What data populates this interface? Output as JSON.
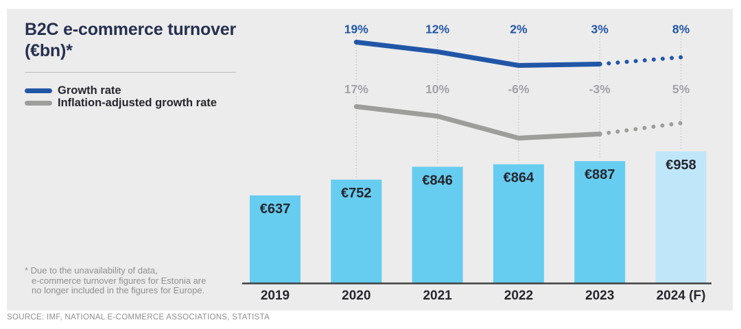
{
  "header": {
    "title_line1": "B2C e-commerce turnover",
    "title_line2": "(€bn)*"
  },
  "footnote": {
    "lines": [
      "* Due to the unavailability of data,",
      "e-commerce turnover figures for Estonia are",
      "no longer included in the figures for Europe."
    ]
  },
  "source": "SOURCE: IMF, NATIONAL E-COMMERCE ASSOCIATIONS, STATISTA",
  "colors": {
    "accent_blue": "#2156a7",
    "line_gray": "#9d9d9c",
    "bar_blue": "#66cdf0",
    "bar_forecast_blue": "#bfe7f9",
    "card_background": "#ececec",
    "dark_text": "#26262e"
  },
  "chart_data": {
    "type": "bar",
    "title": "B2C e-commerce turnover (€bn)*",
    "categories": [
      "2019",
      "2020",
      "2021",
      "2022",
      "2023",
      "2024 (F)"
    ],
    "bars": {
      "name": "B2C e-commerce turnover (€bn)",
      "values": [
        637,
        752,
        846,
        864,
        887,
        958
      ],
      "labels": [
        "€637",
        "€752",
        "€846",
        "€864",
        "€887",
        "€958"
      ],
      "color": "#66cdf0",
      "forecast_color": "#bfe7f9",
      "forecast_index": 5
    },
    "series": [
      {
        "name": "Growth rate",
        "values": [
          null,
          19,
          12,
          2,
          3,
          8
        ],
        "labels": [
          "",
          "19%",
          "12%",
          "2%",
          "3%",
          "8%"
        ],
        "color": "#2156a7",
        "label_color": "#2156a7",
        "dotted_forecast_from_index": 4
      },
      {
        "name": "Inflation-adjusted growth rate",
        "values": [
          null,
          17,
          10,
          -6,
          -3,
          5
        ],
        "labels": [
          "",
          "17%",
          "10%",
          "-6%",
          "-3%",
          "5%"
        ],
        "color": "#9d9d9c",
        "label_color": "#a2a2a6",
        "dotted_forecast_from_index": 4
      }
    ],
    "legend_position": "top-left",
    "grid": "dotted vertical guides at 2020-2024",
    "ylim_bars": [
      0,
      1000
    ]
  }
}
